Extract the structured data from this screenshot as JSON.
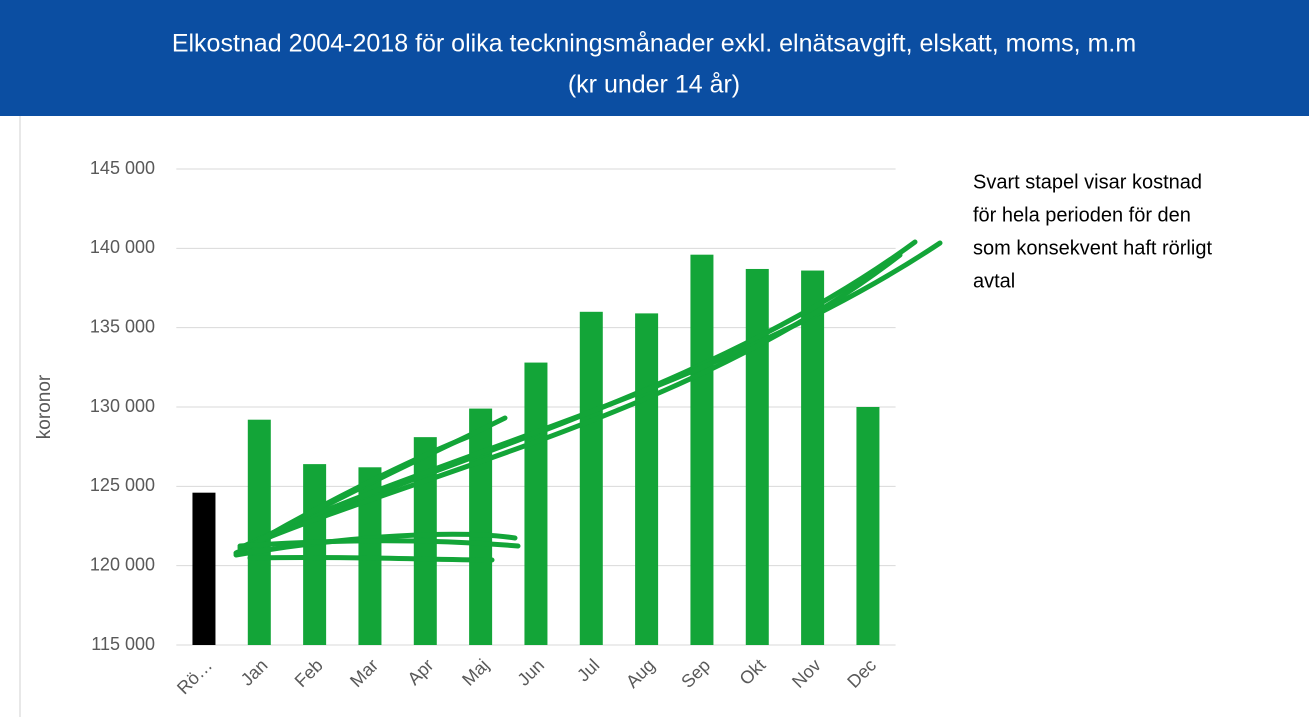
{
  "chart_data": {
    "type": "bar",
    "title": [
      "Elkostnad 2004-2018 för olika teckningsmånader exkl. elnätsavgift, elskatt, moms, m.m",
      "(kr under 14 år)"
    ],
    "ylabel": "koronor",
    "annotation": [
      "Svart stapel visar kostnad",
      "för hela perioden för den",
      "som konsekvent haft rörligt",
      "avtal"
    ],
    "categories": [
      "Rö…",
      "Jan",
      "Feb",
      "Mar",
      "Apr",
      "Maj",
      "Jun",
      "Jul",
      "Aug",
      "Sep",
      "Okt",
      "Nov",
      "Dec"
    ],
    "values": [
      124600,
      129200,
      126400,
      126200,
      128100,
      129900,
      132800,
      136000,
      135900,
      139600,
      138700,
      138600,
      130000
    ],
    "colors": [
      "#000000",
      "#13a538",
      "#13a538",
      "#13a538",
      "#13a538",
      "#13a538",
      "#13a538",
      "#13a538",
      "#13a538",
      "#13a538",
      "#13a538",
      "#13a538",
      "#13a538"
    ],
    "ylim": [
      115000,
      145000
    ],
    "yticks": [
      {
        "value": 115000,
        "label": "115 000"
      },
      {
        "value": 120000,
        "label": "120 000"
      },
      {
        "value": 125000,
        "label": "125 000"
      },
      {
        "value": 130000,
        "label": "130 000"
      },
      {
        "value": 135000,
        "label": "135 000"
      },
      {
        "value": 140000,
        "label": "140 000"
      },
      {
        "value": 145000,
        "label": "145 000"
      }
    ],
    "grid": true
  }
}
